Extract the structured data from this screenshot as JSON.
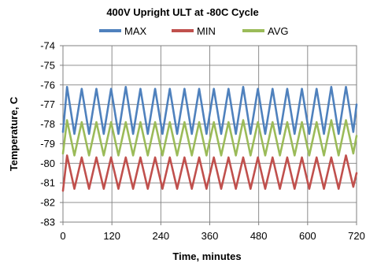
{
  "chart_data": {
    "type": "line",
    "title": "400V Upright ULT at -80C Cycle",
    "xlabel": "Time, minutes",
    "ylabel": "Temperature, C",
    "xlim": [
      0,
      720
    ],
    "ylim": [
      -83,
      -74
    ],
    "x_ticks": [
      0,
      120,
      240,
      360,
      480,
      600,
      720
    ],
    "y_ticks": [
      -74,
      -75,
      -76,
      -77,
      -78,
      -79,
      -80,
      -81,
      -82,
      -83
    ],
    "grid": true,
    "legend_position": "top",
    "cycle_period_minutes": 36,
    "series": [
      {
        "name": "MAX",
        "color": "#4F81BD",
        "values_summary": "oscillates each cycle between about -78.5 (low) and -76.1 (high)",
        "x": [
          0,
          10,
          28,
          46,
          64,
          82,
          100,
          118,
          136,
          154,
          172,
          190,
          208,
          226,
          244,
          262,
          280,
          298,
          316,
          334,
          352,
          370,
          388,
          406,
          424,
          442,
          460,
          478,
          496,
          514,
          532,
          550,
          568,
          586,
          604,
          622,
          640,
          658,
          676,
          694,
          712,
          720
        ],
        "y": [
          -78.4,
          -76.1,
          -78.5,
          -76.2,
          -78.5,
          -76.2,
          -78.5,
          -76.2,
          -78.5,
          -76.1,
          -78.5,
          -76.2,
          -78.5,
          -76.2,
          -78.5,
          -76.2,
          -78.5,
          -76.2,
          -78.5,
          -76.2,
          -78.5,
          -76.2,
          -78.5,
          -76.2,
          -78.5,
          -76.1,
          -78.5,
          -76.2,
          -78.5,
          -76.2,
          -78.5,
          -76.2,
          -78.5,
          -76.2,
          -78.5,
          -76.2,
          -78.5,
          -76.1,
          -78.5,
          -76.1,
          -78.4,
          -77.0
        ]
      },
      {
        "name": "MIN",
        "color": "#C0504D",
        "values_summary": "oscillates each cycle between about -81.3 (low) and -79.6 (high)",
        "x": [
          0,
          10,
          28,
          46,
          64,
          82,
          100,
          118,
          136,
          154,
          172,
          190,
          208,
          226,
          244,
          262,
          280,
          298,
          316,
          334,
          352,
          370,
          388,
          406,
          424,
          442,
          460,
          478,
          496,
          514,
          532,
          550,
          568,
          586,
          604,
          622,
          640,
          658,
          676,
          694,
          712,
          720
        ],
        "y": [
          -81.4,
          -79.6,
          -81.3,
          -79.7,
          -81.3,
          -79.7,
          -81.3,
          -79.7,
          -81.3,
          -79.7,
          -81.3,
          -79.7,
          -81.3,
          -79.7,
          -81.3,
          -79.7,
          -81.3,
          -79.7,
          -81.3,
          -79.7,
          -81.3,
          -79.7,
          -81.3,
          -79.7,
          -81.3,
          -79.7,
          -81.3,
          -79.7,
          -81.3,
          -79.7,
          -81.3,
          -79.7,
          -81.3,
          -79.7,
          -81.3,
          -79.7,
          -81.3,
          -79.7,
          -81.3,
          -79.6,
          -81.2,
          -80.5
        ]
      },
      {
        "name": "AVG",
        "color": "#9BBB59",
        "values_summary": "oscillates each cycle between about -79.6 (low) and -77.8 (high)",
        "x": [
          0,
          10,
          28,
          46,
          64,
          82,
          100,
          118,
          136,
          154,
          172,
          190,
          208,
          226,
          244,
          262,
          280,
          298,
          316,
          334,
          352,
          370,
          388,
          406,
          424,
          442,
          460,
          478,
          496,
          514,
          532,
          550,
          568,
          586,
          604,
          622,
          640,
          658,
          676,
          694,
          712,
          720
        ],
        "y": [
          -79.5,
          -77.8,
          -79.6,
          -77.9,
          -79.6,
          -77.9,
          -79.6,
          -77.9,
          -79.6,
          -77.9,
          -79.6,
          -77.9,
          -79.6,
          -77.9,
          -79.6,
          -77.9,
          -79.6,
          -77.9,
          -79.6,
          -77.9,
          -79.6,
          -77.9,
          -79.6,
          -77.9,
          -79.6,
          -77.8,
          -79.6,
          -77.9,
          -79.6,
          -77.9,
          -79.6,
          -77.9,
          -79.6,
          -77.9,
          -79.6,
          -77.9,
          -79.6,
          -77.8,
          -79.6,
          -77.8,
          -79.5,
          -78.6
        ]
      }
    ]
  }
}
